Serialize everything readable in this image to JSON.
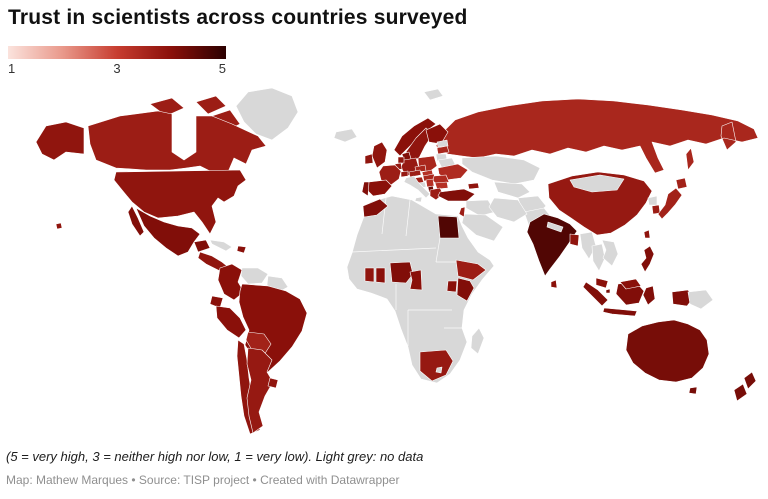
{
  "header": {
    "title": "Trust in scientists across countries surveyed"
  },
  "legend": {
    "labels": [
      "1",
      "3",
      "5"
    ]
  },
  "footer": {
    "footnote": "(5 = very high, 3 = neither high nor low, 1 = very low). Light grey: no data",
    "attribution": "Map: Mathew Marques • Source: TISP project • Created with Datawrapper"
  },
  "chart_data": {
    "type": "choropleth_map",
    "title": "Trust in scientists across countries surveyed",
    "legend": {
      "min": 1,
      "mid": 3,
      "max": 5
    },
    "color_scale": {
      "stops": [
        [
          1,
          "#fbe3dd"
        ],
        [
          2,
          "#e9998b"
        ],
        [
          3,
          "#c73d30"
        ],
        [
          4,
          "#8a100a"
        ],
        [
          5,
          "#2b0000"
        ]
      ]
    },
    "no_data_color": "#d8d8d8",
    "border_color": "#ffffff",
    "countries": [
      {
        "id": "canada",
        "name": "Canada",
        "value": 3.7
      },
      {
        "id": "usa",
        "name": "United States",
        "value": 3.9
      },
      {
        "id": "mexico",
        "name": "Mexico",
        "value": 4.1
      },
      {
        "id": "central-america",
        "name": "Costa Rica",
        "value": 3.9
      },
      {
        "id": "dominican-republic",
        "name": "Dominican Republic",
        "value": 4.0
      },
      {
        "id": "colombia",
        "name": "Colombia",
        "value": 4.0
      },
      {
        "id": "ecuador",
        "name": "Ecuador",
        "value": 4.0
      },
      {
        "id": "peru",
        "name": "Peru",
        "value": 4.0
      },
      {
        "id": "brazil",
        "name": "Brazil",
        "value": 4.0
      },
      {
        "id": "bolivia",
        "name": "Bolivia",
        "value": 3.6
      },
      {
        "id": "chile",
        "name": "Chile",
        "value": 3.9
      },
      {
        "id": "argentina",
        "name": "Argentina",
        "value": 3.8
      },
      {
        "id": "uruguay",
        "name": "Uruguay",
        "value": 3.9
      },
      {
        "id": "uk",
        "name": "United Kingdom",
        "value": 3.9
      },
      {
        "id": "ireland",
        "name": "Ireland",
        "value": 3.9
      },
      {
        "id": "norway",
        "name": "Norway",
        "value": 4.0
      },
      {
        "id": "sweden",
        "name": "Sweden",
        "value": 3.9
      },
      {
        "id": "finland",
        "name": "Finland",
        "value": 4.0
      },
      {
        "id": "denmark",
        "name": "Denmark",
        "value": 4.1
      },
      {
        "id": "latvia",
        "name": "Latvia",
        "value": 3.5
      },
      {
        "id": "poland",
        "name": "Poland",
        "value": 3.5
      },
      {
        "id": "germany",
        "name": "Germany",
        "value": 3.8
      },
      {
        "id": "netherlands",
        "name": "Netherlands",
        "value": 3.9
      },
      {
        "id": "belgium",
        "name": "Belgium",
        "value": 3.8
      },
      {
        "id": "france",
        "name": "France",
        "value": 3.7
      },
      {
        "id": "spain",
        "name": "Spain",
        "value": 4.0
      },
      {
        "id": "portugal",
        "name": "Portugal",
        "value": 4.1
      },
      {
        "id": "switzerland",
        "name": "Switzerland",
        "value": 3.8
      },
      {
        "id": "austria",
        "name": "Austria",
        "value": 3.7
      },
      {
        "id": "czechia",
        "name": "Czechia",
        "value": 3.5
      },
      {
        "id": "slovakia",
        "name": "Slovakia",
        "value": 3.3
      },
      {
        "id": "hungary",
        "name": "Hungary",
        "value": 3.5
      },
      {
        "id": "croatia",
        "name": "Croatia",
        "value": 3.6
      },
      {
        "id": "serbia",
        "name": "Serbia",
        "value": 3.3
      },
      {
        "id": "albania",
        "name": "Albania",
        "value": 4.3
      },
      {
        "id": "romania",
        "name": "Romania",
        "value": 3.4
      },
      {
        "id": "bulgaria",
        "name": "Bulgaria",
        "value": 3.3
      },
      {
        "id": "greece",
        "name": "Greece",
        "value": 3.7
      },
      {
        "id": "ukraine",
        "name": "Ukraine",
        "value": 3.4
      },
      {
        "id": "turkey",
        "name": "Türkiye",
        "value": 4.1
      },
      {
        "id": "georgia",
        "name": "Georgia",
        "value": 3.9
      },
      {
        "id": "israel",
        "name": "Israel",
        "value": 3.7
      },
      {
        "id": "russia",
        "name": "Russia",
        "value": 3.5
      },
      {
        "id": "egypt",
        "name": "Egypt",
        "value": 4.6
      },
      {
        "id": "morocco",
        "name": "Morocco",
        "value": 4.1
      },
      {
        "id": "ivory-coast",
        "name": "Côte d'Ivoire",
        "value": 3.9
      },
      {
        "id": "ghana",
        "name": "Ghana",
        "value": 4.0
      },
      {
        "id": "nigeria",
        "name": "Nigeria",
        "value": 4.1
      },
      {
        "id": "cameroon",
        "name": "Cameroon",
        "value": 4.0
      },
      {
        "id": "ethiopia",
        "name": "Ethiopia",
        "value": 3.7
      },
      {
        "id": "kenya",
        "name": "Kenya",
        "value": 4.1
      },
      {
        "id": "uganda",
        "name": "Uganda",
        "value": 4.0
      },
      {
        "id": "south-africa",
        "name": "South Africa",
        "value": 3.8
      },
      {
        "id": "india",
        "name": "India",
        "value": 4.6
      },
      {
        "id": "bangladesh",
        "name": "Bangladesh",
        "value": 3.9
      },
      {
        "id": "sri-lanka",
        "name": "Sri Lanka",
        "value": 4.0
      },
      {
        "id": "china",
        "name": "China",
        "value": 3.8
      },
      {
        "id": "south-korea",
        "name": "South Korea",
        "value": 3.7
      },
      {
        "id": "japan",
        "name": "Japan",
        "value": 3.6
      },
      {
        "id": "taiwan",
        "name": "Taiwan",
        "value": 3.9
      },
      {
        "id": "philippines",
        "name": "Philippines",
        "value": 4.1
      },
      {
        "id": "malaysia",
        "name": "Malaysia",
        "value": 4.0
      },
      {
        "id": "singapore",
        "name": "Singapore",
        "value": 4.2
      },
      {
        "id": "indonesia",
        "name": "Indonesia",
        "value": 4.1
      },
      {
        "id": "australia",
        "name": "Australia",
        "value": 4.2
      },
      {
        "id": "new-zealand",
        "name": "New Zealand",
        "value": 4.2
      }
    ],
    "no_data_regions": [
      "greenland",
      "iceland",
      "svalbard",
      "cuba",
      "venezuela",
      "guianas",
      "paraguay",
      "estonia",
      "lithuania",
      "belarus",
      "bosnia",
      "kazakhstan",
      "central-asia",
      "afghanistan",
      "pakistan",
      "iran",
      "syria-iraq",
      "saudi-arabia",
      "africa-base",
      "madagascar",
      "lesotho",
      "nepal",
      "mongolia",
      "north-korea",
      "myanmar",
      "thailand",
      "indochina",
      "papua-new-guinea"
    ]
  }
}
